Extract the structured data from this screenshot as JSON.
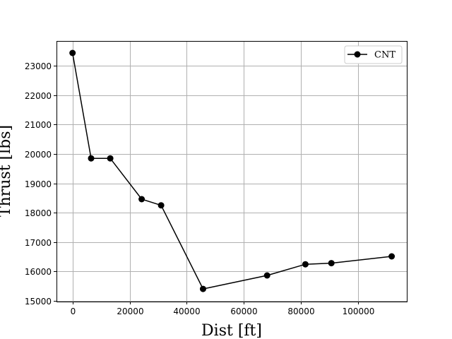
{
  "chart_data": {
    "type": "line",
    "title": "",
    "xlabel": "Dist [ft]",
    "ylabel": "Thrust [lbs]",
    "xlim": [
      -5600,
      117000
    ],
    "ylim": [
      14970,
      23850
    ],
    "xticks": [
      0,
      20000,
      40000,
      60000,
      80000,
      100000
    ],
    "yticks": [
      15000,
      16000,
      17000,
      18000,
      19000,
      20000,
      21000,
      22000,
      23000
    ],
    "grid": true,
    "legend_position": "top-right",
    "series": [
      {
        "name": "CNT",
        "color": "#000000",
        "marker": "circle",
        "x": [
          0,
          6500,
          13200,
          24200,
          31000,
          45700,
          68100,
          81500,
          90600,
          111700
        ],
        "y": [
          23440,
          19850,
          19850,
          18460,
          18250,
          15400,
          15860,
          16240,
          16280,
          16510
        ]
      }
    ]
  }
}
